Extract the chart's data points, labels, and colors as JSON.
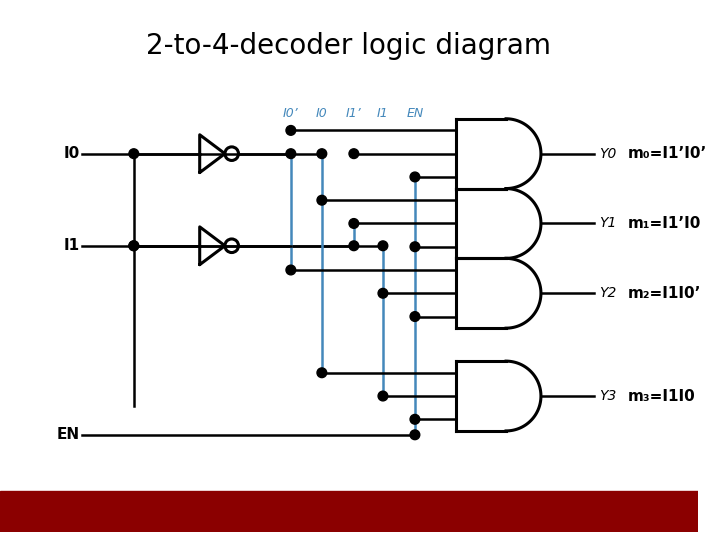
{
  "title": "2-to-4-decoder logic diagram",
  "title_fontsize": 20,
  "bg_color": "#ffffff",
  "line_color": "#000000",
  "blue_color": "#4488bb",
  "red_bar_color": "#8b0000",
  "text_color": "#000000",
  "gate_labels": [
    "Y0",
    "Y1",
    "Y2",
    "Y3"
  ],
  "minterms": [
    "m₀=I1’I0’",
    "m₁=I1’I0",
    "m₂=I1I0’",
    "m₃=I1I0"
  ],
  "col_labels": [
    "I0’",
    "I0",
    "I1’",
    "I1",
    "EN"
  ],
  "figsize": [
    7.2,
    5.4
  ],
  "dpi": 100
}
